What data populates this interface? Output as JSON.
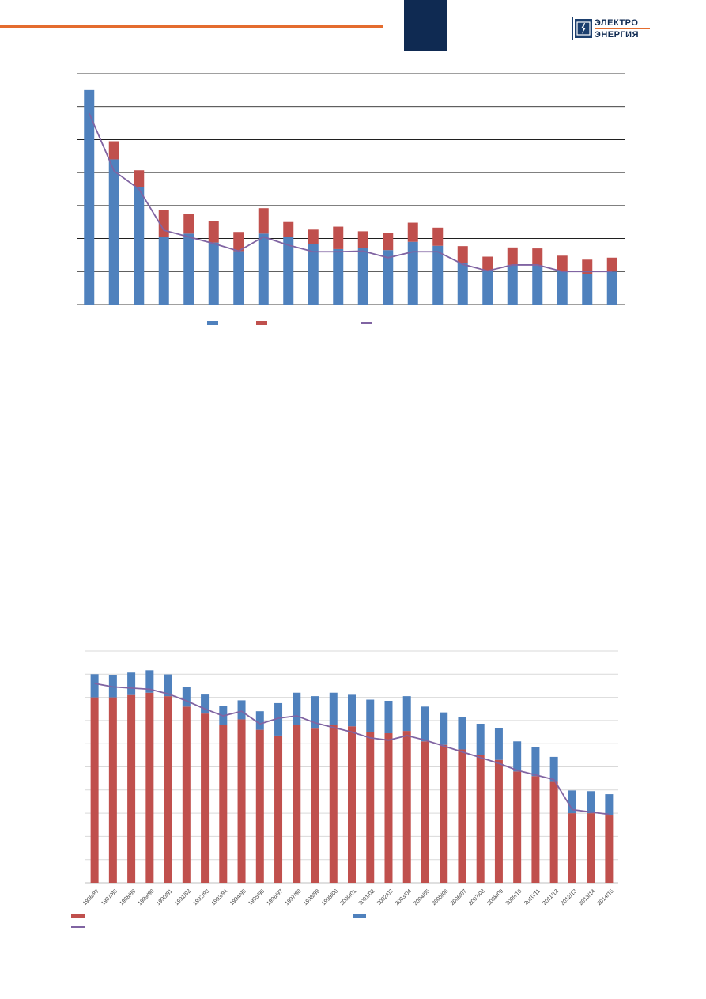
{
  "colors": {
    "accent_orange": "#e46c2e",
    "navy": "#0f2a52",
    "blue": "#4f81bd",
    "red": "#c0504d",
    "purple": "#8064a2",
    "grid": "#000000",
    "grid_light": "#d9d9d9"
  },
  "header": {
    "logo_line1": "ЭЛЕКТРО",
    "logo_line2": "ЭНЕРГИЯ",
    "logo_icon": "lightning-bolt-icon"
  },
  "chart_data": [
    {
      "type": "bar",
      "stacked": true,
      "grid": true,
      "categories": [
        "",
        "",
        "",
        "",
        "",
        "",
        "",
        "",
        "",
        "",
        "",
        "",
        "",
        "",
        "",
        "",
        "",
        "",
        "",
        "",
        "",
        ""
      ],
      "ylim": [
        0,
        7
      ],
      "series": [
        {
          "type": "bar",
          "color": "#4f81bd",
          "values": [
            6.5,
            4.4,
            3.55,
            2.05,
            2.15,
            1.88,
            1.62,
            2.15,
            2.05,
            1.83,
            1.68,
            1.72,
            1.65,
            1.9,
            1.78,
            1.27,
            1.02,
            1.2,
            1.18,
            1.02,
            0.92,
            1.0
          ]
        },
        {
          "type": "bar",
          "color": "#c0504d",
          "values": [
            0.0,
            0.55,
            0.52,
            0.82,
            0.6,
            0.66,
            0.58,
            0.77,
            0.45,
            0.44,
            0.68,
            0.5,
            0.52,
            0.58,
            0.55,
            0.5,
            0.43,
            0.53,
            0.52,
            0.46,
            0.44,
            0.42
          ]
        },
        {
          "type": "line",
          "color": "#8064a2",
          "values": [
            5.8,
            4.05,
            3.5,
            2.25,
            2.05,
            1.85,
            1.62,
            2.05,
            1.8,
            1.6,
            1.6,
            1.62,
            1.42,
            1.6,
            1.6,
            1.22,
            1.02,
            1.2,
            1.2,
            1.0,
            1.0,
            1.0
          ]
        }
      ]
    },
    {
      "type": "bar",
      "stacked": true,
      "grid": true,
      "categories": [
        "1986/87",
        "1987/88",
        "1988/89",
        "1989/90",
        "1990/91",
        "1991/92",
        "1992/93",
        "1993/94",
        "1994/95",
        "1995/96",
        "1996/97",
        "1997/98",
        "1998/99",
        "1999/00",
        "2000/01",
        "2001/02",
        "2002/03",
        "2003/04",
        "2004/05",
        "2005/06",
        "2006/07",
        "2007/08",
        "2008/09",
        "2009/10",
        "2010/11",
        "2011/12",
        "2012/13",
        "2013/14",
        "2014/15"
      ],
      "ylim": [
        0,
        10
      ],
      "series": [
        {
          "type": "bar",
          "color": "#c0504d",
          "values": [
            8.0,
            8.0,
            8.1,
            8.2,
            8.05,
            7.6,
            7.3,
            6.8,
            7.05,
            6.6,
            6.35,
            6.8,
            6.65,
            6.8,
            6.75,
            6.5,
            6.45,
            6.55,
            6.1,
            5.95,
            5.75,
            5.5,
            5.3,
            4.8,
            4.6,
            4.35,
            3.0,
            3.0,
            2.9
          ]
        },
        {
          "type": "bar",
          "color": "#4f81bd",
          "values": [
            1.0,
            0.97,
            0.97,
            0.97,
            0.94,
            0.86,
            0.82,
            0.82,
            0.82,
            0.8,
            1.4,
            1.4,
            1.4,
            1.4,
            1.36,
            1.4,
            1.4,
            1.5,
            1.5,
            1.4,
            1.4,
            1.36,
            1.36,
            1.3,
            1.25,
            1.08,
            0.98,
            0.95,
            0.92
          ]
        },
        {
          "type": "line",
          "color": "#8064a2",
          "values": [
            8.6,
            8.45,
            8.4,
            8.35,
            8.15,
            7.85,
            7.5,
            7.2,
            7.4,
            6.85,
            7.1,
            7.2,
            6.9,
            6.7,
            6.5,
            6.25,
            6.15,
            6.35,
            6.15,
            5.9,
            5.65,
            5.4,
            5.15,
            4.85,
            4.65,
            4.45,
            3.15,
            3.05,
            2.95
          ]
        }
      ]
    }
  ]
}
